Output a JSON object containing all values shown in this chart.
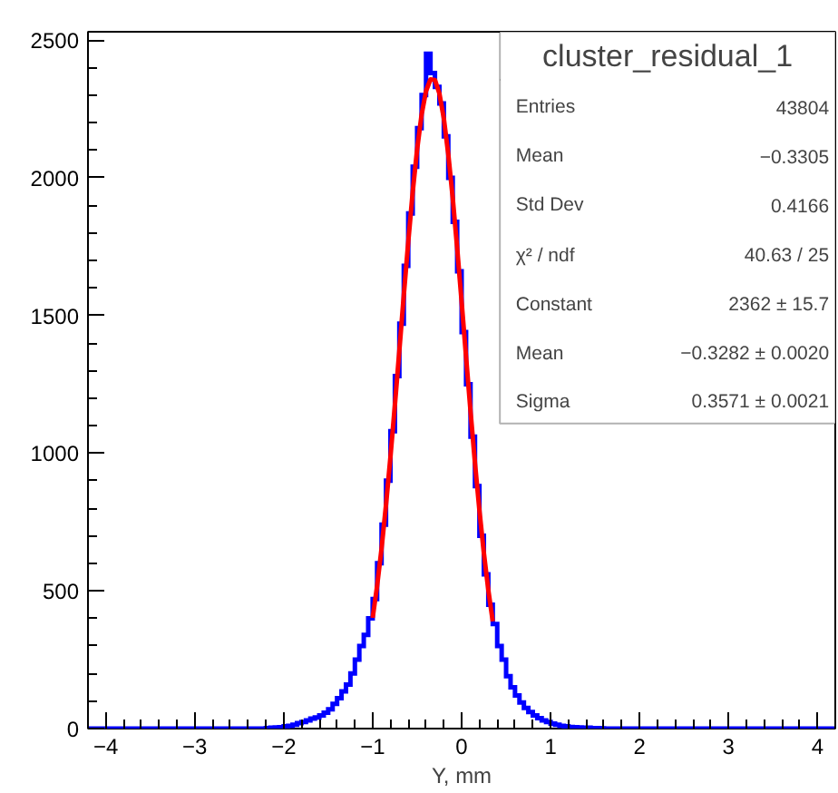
{
  "chart_data": {
    "type": "histogram",
    "title": "cluster_residual_1",
    "xlabel": "Y, mm",
    "bins": [
      -4.2,
      -2.2,
      -2.15,
      -2.1,
      -2.05,
      -2.0,
      -1.95,
      -1.9,
      -1.85,
      -1.8,
      -1.75,
      -1.7,
      -1.65,
      -1.6,
      -1.55,
      -1.5,
      -1.45,
      -1.4,
      -1.35,
      -1.3,
      -1.25,
      -1.2,
      -1.15,
      -1.1,
      -1.05,
      -1.0,
      -0.95,
      -0.9,
      -0.85,
      -0.8,
      -0.75,
      -0.7,
      -0.65,
      -0.6,
      -0.55,
      -0.5,
      -0.45,
      -0.4,
      -0.35,
      -0.3,
      -0.25,
      -0.2,
      -0.15,
      -0.1,
      -0.05,
      0.0,
      0.05,
      0.1,
      0.15,
      0.2,
      0.25,
      0.3,
      0.35,
      0.4,
      0.45,
      0.5,
      0.55,
      0.6,
      0.65,
      0.7,
      0.75,
      0.8,
      0.85,
      0.9,
      0.95,
      1.0,
      1.05,
      1.1,
      1.15,
      1.2,
      1.25,
      1.3,
      1.35,
      1.4,
      1.45,
      1.5,
      1.55,
      1.6,
      4.2
    ],
    "values": [
      0,
      2,
      3,
      4,
      5,
      8,
      10,
      14,
      20,
      24,
      30,
      36,
      40,
      48,
      58,
      70,
      90,
      110,
      135,
      160,
      200,
      250,
      300,
      340,
      400,
      470,
      600,
      740,
      900,
      1080,
      1280,
      1470,
      1680,
      1870,
      2040,
      2180,
      2300,
      2450,
      2380,
      2330,
      2270,
      2150,
      2000,
      1840,
      1660,
      1440,
      1250,
      1060,
      880,
      700,
      560,
      450,
      380,
      300,
      250,
      190,
      150,
      120,
      95,
      75,
      60,
      48,
      38,
      30,
      24,
      18,
      14,
      10,
      8,
      6,
      5,
      4,
      3,
      3,
      2,
      2,
      1,
      0
    ],
    "color": "#0000ff",
    "series": [
      {
        "type": "line",
        "color": "#ff0000",
        "x": [
          -1.0,
          -0.95,
          -0.9,
          -0.85,
          -0.8,
          -0.75,
          -0.7,
          -0.65,
          -0.6,
          -0.55,
          -0.5,
          -0.45,
          -0.4,
          -0.35,
          -0.3,
          -0.25,
          -0.2,
          -0.15,
          -0.1,
          -0.05,
          0.0,
          0.05,
          0.1,
          0.15,
          0.2,
          0.25,
          0.3,
          0.35
        ],
        "values": [
          402,
          518,
          654,
          812,
          987,
          1175,
          1373,
          1574,
          1767,
          1948,
          2104,
          2229,
          2315,
          2357,
          2355,
          2306,
          2215,
          2085,
          1926,
          1744,
          1549,
          1349,
          1152,
          964,
          792,
          637,
          503,
          389
        ]
      }
    ],
    "xlim": [
      -4.2,
      4.2
    ],
    "ylim": [
      0,
      2530
    ],
    "xticks": [
      -4,
      -3,
      -2,
      -1,
      0,
      1,
      2,
      3,
      4
    ],
    "yticks": [
      0,
      500,
      1000,
      1500,
      2000,
      2500
    ],
    "grid": false,
    "annotations": [
      "Entries",
      "43804",
      "Mean",
      "−0.3305",
      "Std Dev",
      "0.4166",
      "χ² / ndf",
      "40.63 / 25",
      "Constant",
      "2362 ± 15.7",
      "Mean",
      "−0.3282 ± 0.0020",
      "Sigma",
      "0.3571 ± 0.0021"
    ]
  }
}
